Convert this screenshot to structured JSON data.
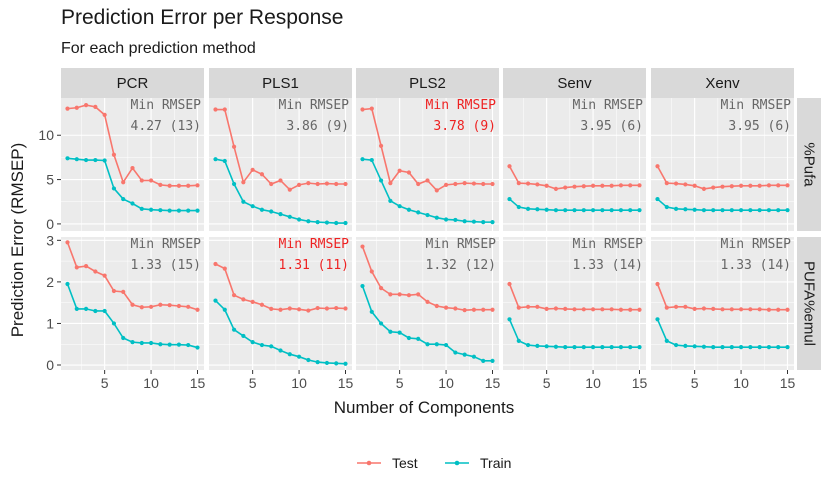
{
  "chart_data": {
    "type": "line",
    "title": "Prediction Error per Response",
    "subtitle": "For each prediction method",
    "xlabel": "Number of Components",
    "ylabel": "Prediction Error (RMSEP)",
    "methods": [
      "PCR",
      "PLS1",
      "PLS2",
      "Senv",
      "Xenv"
    ],
    "responses": [
      {
        "name": "%Pufa",
        "ylim": [
          -0.8,
          14.2
        ],
        "yticks": [
          0,
          5,
          10
        ]
      },
      {
        "name": "PUFA%emul",
        "ylim": [
          -0.12,
          3.08
        ],
        "yticks": [
          0,
          1,
          2,
          3
        ]
      }
    ],
    "xlim": [
      0.3,
      15.7
    ],
    "xticks": [
      5,
      10,
      15
    ],
    "annotation_header": "Min RMSEP",
    "colors": {
      "Test": "#F8766D",
      "Train": "#00BFC4",
      "highlight": "#ee2222",
      "annotation": "#666666"
    },
    "legend": {
      "items": [
        "Test",
        "Train"
      ],
      "position": "bottom"
    },
    "panels": [
      {
        "method": "PCR",
        "response": "%Pufa",
        "min_label": "4.27 (13)",
        "highlight": false,
        "test": [
          13.0,
          13.1,
          13.4,
          13.2,
          12.3,
          7.8,
          4.7,
          6.3,
          4.9,
          4.9,
          4.4,
          4.3,
          4.3,
          4.3,
          4.35
        ],
        "train": [
          7.4,
          7.3,
          7.2,
          7.2,
          7.15,
          4.0,
          2.8,
          2.3,
          1.7,
          1.6,
          1.55,
          1.5,
          1.5,
          1.5,
          1.5
        ]
      },
      {
        "method": "PLS1",
        "response": "%Pufa",
        "min_label": "3.86 (9)",
        "highlight": false,
        "test": [
          12.9,
          12.9,
          8.7,
          4.7,
          6.1,
          5.6,
          4.5,
          4.9,
          3.86,
          4.4,
          4.6,
          4.5,
          4.55,
          4.5,
          4.5
        ],
        "train": [
          7.3,
          7.1,
          4.5,
          2.5,
          2.0,
          1.6,
          1.4,
          1.1,
          0.8,
          0.5,
          0.3,
          0.2,
          0.15,
          0.1,
          0.1
        ]
      },
      {
        "method": "PLS2",
        "response": "%Pufa",
        "min_label": "3.78 (9)",
        "highlight": true,
        "test": [
          12.9,
          13.0,
          8.8,
          4.6,
          6.0,
          5.8,
          4.5,
          4.9,
          3.78,
          4.4,
          4.5,
          4.6,
          4.55,
          4.5,
          4.5
        ],
        "train": [
          7.3,
          7.2,
          4.9,
          2.6,
          2.0,
          1.6,
          1.3,
          1.0,
          0.7,
          0.5,
          0.45,
          0.3,
          0.25,
          0.2,
          0.2
        ]
      },
      {
        "method": "Senv",
        "response": "%Pufa",
        "min_label": "3.95 (6)",
        "highlight": false,
        "test": [
          6.5,
          4.6,
          4.55,
          4.45,
          4.3,
          3.95,
          4.1,
          4.2,
          4.25,
          4.3,
          4.3,
          4.3,
          4.35,
          4.35,
          4.35
        ],
        "train": [
          2.8,
          1.9,
          1.7,
          1.65,
          1.6,
          1.55,
          1.55,
          1.55,
          1.55,
          1.55,
          1.55,
          1.55,
          1.55,
          1.55,
          1.55
        ]
      },
      {
        "method": "Xenv",
        "response": "%Pufa",
        "min_label": "3.95 (6)",
        "highlight": false,
        "test": [
          6.5,
          4.6,
          4.55,
          4.45,
          4.3,
          3.95,
          4.1,
          4.2,
          4.25,
          4.3,
          4.3,
          4.3,
          4.35,
          4.35,
          4.35
        ],
        "train": [
          2.8,
          1.9,
          1.7,
          1.65,
          1.6,
          1.55,
          1.55,
          1.55,
          1.55,
          1.55,
          1.55,
          1.55,
          1.55,
          1.55,
          1.55
        ]
      },
      {
        "method": "PCR",
        "response": "PUFA%emul",
        "min_label": "1.33 (15)",
        "highlight": false,
        "test": [
          2.95,
          2.35,
          2.38,
          2.25,
          2.15,
          1.78,
          1.76,
          1.45,
          1.39,
          1.4,
          1.45,
          1.44,
          1.42,
          1.4,
          1.33
        ],
        "train": [
          1.95,
          1.35,
          1.35,
          1.3,
          1.3,
          1.0,
          0.65,
          0.55,
          0.53,
          0.53,
          0.5,
          0.49,
          0.49,
          0.48,
          0.42
        ]
      },
      {
        "method": "PLS1",
        "response": "PUFA%emul",
        "min_label": "1.31 (11)",
        "highlight": true,
        "test": [
          2.43,
          2.32,
          1.68,
          1.58,
          1.52,
          1.45,
          1.35,
          1.33,
          1.36,
          1.34,
          1.31,
          1.37,
          1.36,
          1.37,
          1.36
        ],
        "train": [
          1.55,
          1.33,
          0.85,
          0.7,
          0.55,
          0.48,
          0.45,
          0.35,
          0.26,
          0.2,
          0.12,
          0.07,
          0.05,
          0.04,
          0.03
        ]
      },
      {
        "method": "PLS2",
        "response": "PUFA%emul",
        "min_label": "1.32 (12)",
        "highlight": false,
        "test": [
          2.85,
          2.25,
          1.85,
          1.7,
          1.7,
          1.68,
          1.7,
          1.52,
          1.42,
          1.38,
          1.36,
          1.32,
          1.33,
          1.33,
          1.33
        ],
        "train": [
          1.9,
          1.28,
          1.0,
          0.8,
          0.78,
          0.65,
          0.63,
          0.5,
          0.5,
          0.48,
          0.3,
          0.25,
          0.2,
          0.1,
          0.1
        ]
      },
      {
        "method": "Senv",
        "response": "PUFA%emul",
        "min_label": "1.33 (14)",
        "highlight": false,
        "test": [
          1.95,
          1.38,
          1.4,
          1.4,
          1.35,
          1.36,
          1.35,
          1.34,
          1.34,
          1.34,
          1.34,
          1.34,
          1.33,
          1.33,
          1.33
        ],
        "train": [
          1.1,
          0.58,
          0.48,
          0.46,
          0.45,
          0.44,
          0.43,
          0.43,
          0.43,
          0.43,
          0.43,
          0.43,
          0.43,
          0.43,
          0.43
        ]
      },
      {
        "method": "Xenv",
        "response": "PUFA%emul",
        "min_label": "1.33 (14)",
        "highlight": false,
        "test": [
          1.95,
          1.38,
          1.4,
          1.4,
          1.35,
          1.36,
          1.35,
          1.34,
          1.34,
          1.34,
          1.34,
          1.34,
          1.33,
          1.33,
          1.33
        ],
        "train": [
          1.1,
          0.58,
          0.48,
          0.46,
          0.45,
          0.44,
          0.43,
          0.43,
          0.43,
          0.43,
          0.43,
          0.43,
          0.43,
          0.43,
          0.43
        ]
      }
    ]
  }
}
